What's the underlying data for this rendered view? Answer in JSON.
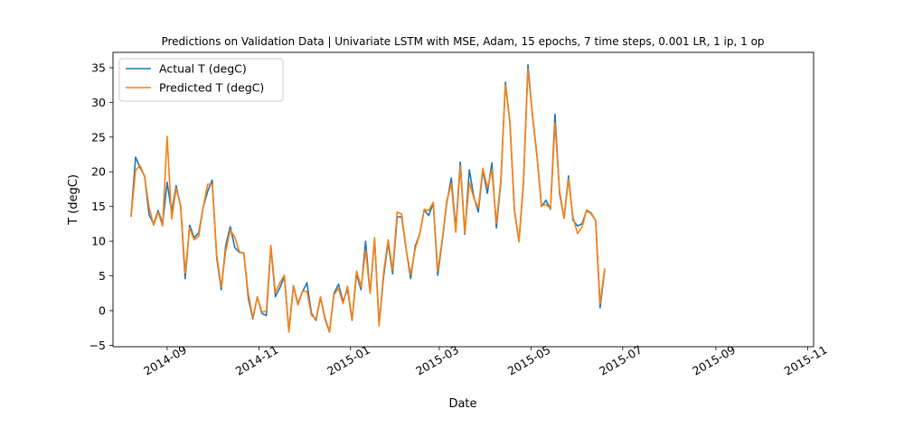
{
  "chart_data": {
    "type": "line",
    "title": "Predictions on Validation Data  | Univariate LSTM with MSE, Adam, 15 epochs, 7 time steps, 0.001 LR, 1 ip, 1 op",
    "xlabel": "Date",
    "ylabel": "T (degC)",
    "x_tick_labels": [
      "2014-09",
      "2014-11",
      "2015-01",
      "2015-03",
      "2015-05",
      "2015-07",
      "2015-09",
      "2015-11"
    ],
    "y_ticks": [
      -5,
      0,
      5,
      10,
      15,
      20,
      25,
      30,
      35
    ],
    "xlim": [
      "2014-07-27",
      "2015-11-05"
    ],
    "ylim": [
      -5.2,
      37.2
    ],
    "legend_position": "upper-left",
    "x_start": "2014-08-08",
    "x_step_days": 3,
    "series": [
      {
        "name": "Actual T (degC)",
        "color": "#1f77b4",
        "values": [
          13.5,
          22.1,
          20.6,
          19.4,
          13.8,
          12.5,
          14.4,
          12.6,
          18.5,
          14.2,
          18.0,
          15.0,
          4.6,
          12.3,
          10.5,
          11.2,
          14.9,
          17.2,
          18.8,
          7.6,
          3.0,
          9.4,
          12.1,
          9.1,
          8.4,
          8.3,
          1.8,
          -1.2,
          2.0,
          -0.4,
          -0.7,
          9.2,
          2.0,
          3.3,
          4.9,
          -2.9,
          3.6,
          1.0,
          2.7,
          4.0,
          -0.4,
          -1.4,
          1.9,
          -1.2,
          -3.1,
          2.5,
          3.8,
          1.3,
          3.1,
          -1.4,
          5.3,
          3.0,
          10.0,
          2.5,
          10.3,
          -2.0,
          4.9,
          9.8,
          5.3,
          13.5,
          13.5,
          8.8,
          4.6,
          9.3,
          11.0,
          14.5,
          13.7,
          15.5,
          5.1,
          10.0,
          15.5,
          19.1,
          11.7,
          21.4,
          11.0,
          20.3,
          16.4,
          14.2,
          20.2,
          16.9,
          21.3,
          11.9,
          18.6,
          32.9,
          27.0,
          14.4,
          10.0,
          18.2,
          35.4,
          28.1,
          22.3,
          15.0,
          15.9,
          14.6,
          28.3,
          16.9,
          13.3,
          19.4,
          13.0,
          12.2,
          12.5,
          14.4,
          14.0,
          13.0,
          0.4,
          5.8
        ]
      },
      {
        "name": "Predicted T (degC)",
        "color": "#ff7f0e",
        "values": [
          13.5,
          20.2,
          20.9,
          19.3,
          14.9,
          12.3,
          14.2,
          12.2,
          25.1,
          13.2,
          17.6,
          15.2,
          5.4,
          11.9,
          10.2,
          10.7,
          14.9,
          18.2,
          18.2,
          8.0,
          3.4,
          8.6,
          11.6,
          10.6,
          8.5,
          8.2,
          2.4,
          -1.0,
          2.0,
          -0.2,
          -0.1,
          9.4,
          2.6,
          4.0,
          5.1,
          -3.1,
          3.5,
          0.8,
          2.8,
          2.8,
          -0.7,
          -1.2,
          2.0,
          -1.0,
          -3.0,
          2.3,
          3.2,
          1.0,
          3.5,
          -1.3,
          5.7,
          3.4,
          8.7,
          2.5,
          10.5,
          -2.2,
          5.5,
          10.2,
          5.8,
          14.2,
          13.9,
          8.8,
          5.2,
          8.9,
          11.0,
          14.6,
          14.4,
          15.6,
          5.7,
          10.2,
          15.8,
          18.3,
          11.3,
          20.8,
          11.2,
          18.5,
          16.2,
          14.8,
          20.5,
          17.7,
          20.3,
          12.6,
          18.9,
          32.5,
          27.3,
          14.6,
          9.9,
          18.5,
          34.8,
          28.2,
          22.5,
          15.1,
          15.3,
          14.7,
          27.0,
          17.3,
          13.3,
          19.0,
          13.4,
          11.1,
          12.0,
          14.5,
          14.1,
          13.0,
          1.0,
          6.1
        ]
      }
    ]
  }
}
